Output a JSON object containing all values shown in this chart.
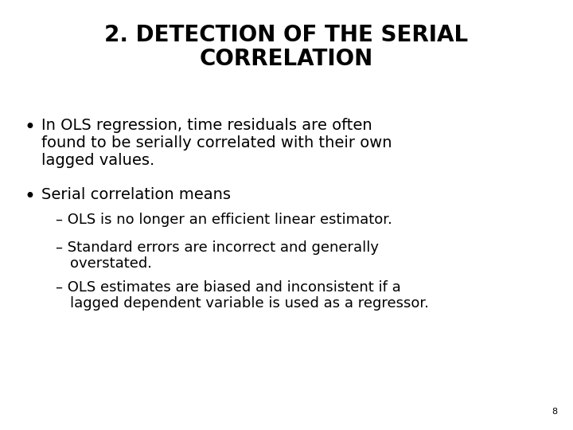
{
  "title_line1": "2. DETECTION OF THE SERIAL",
  "title_line2": "CORRELATION",
  "background_color": "#ffffff",
  "text_color": "#000000",
  "title_fontsize": 20,
  "body_fontsize": 14,
  "sub_fontsize": 13,
  "page_number": "8",
  "bullet1_line1": "In OLS regression, time residuals are often",
  "bullet1_line2": "found to be serially correlated with their own",
  "bullet1_line3": "lagged values.",
  "bullet2": "Serial correlation means",
  "dash1_line1": "– OLS is no longer an efficient linear estimator.",
  "dash2_line1": "– Standard errors are incorrect and generally",
  "dash2_line2": "   overstated.",
  "dash3_line1": "– OLS estimates are biased and inconsistent if a",
  "dash3_line2": "   lagged dependent variable is used as a regressor."
}
